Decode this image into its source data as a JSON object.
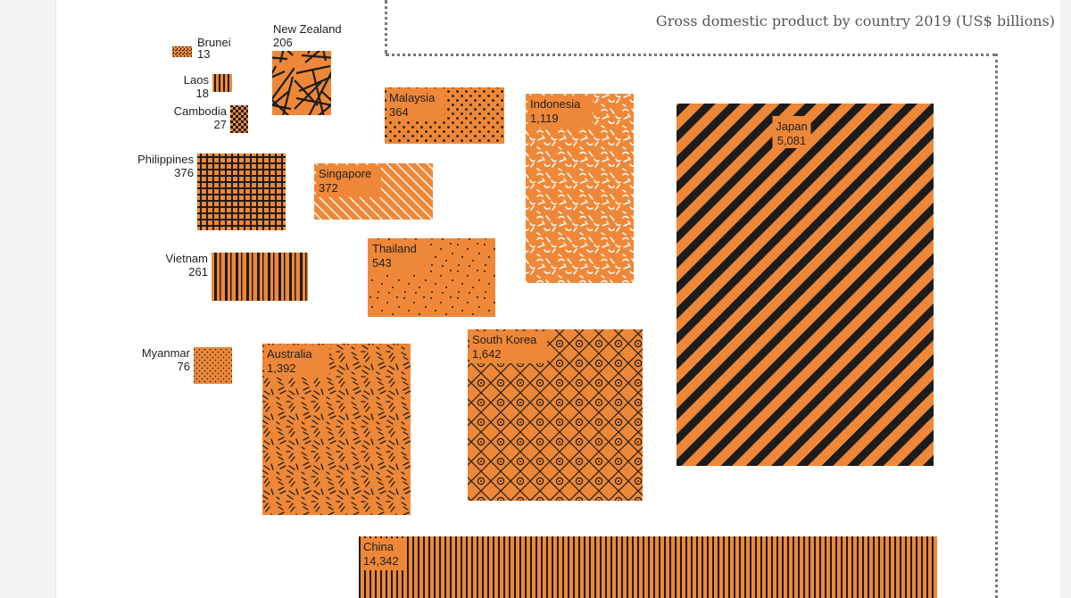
{
  "chart_data": {
    "type": "treemap",
    "title": "Gross domestic product by country 2019 (US$ billions)",
    "colors": {
      "fill": "#ee8838",
      "ink": "#1c1c1c",
      "label_bg": "#ee8838"
    },
    "countries": [
      {
        "name": "Brunei",
        "label_value": "13",
        "value": 13,
        "pattern": "dense-texture"
      },
      {
        "name": "Laos",
        "label_value": "18",
        "value": 18,
        "pattern": "vertical-thick-stripes"
      },
      {
        "name": "Cambodia",
        "label_value": "27",
        "value": 27,
        "pattern": "checkerboard"
      },
      {
        "name": "New Zealand",
        "label_value": "206",
        "value": 206,
        "pattern": "random-lines"
      },
      {
        "name": "Philippines",
        "label_value": "376",
        "value": 376,
        "pattern": "grid"
      },
      {
        "name": "Malaysia",
        "label_value": "364",
        "value": 364,
        "pattern": "dots"
      },
      {
        "name": "Singapore",
        "label_value": "372",
        "value": 372,
        "pattern": "diagonal-thin"
      },
      {
        "name": "Indonesia",
        "label_value": "1,119",
        "value": 1119,
        "pattern": "white-squiggles"
      },
      {
        "name": "Japan",
        "label_value": "5,081",
        "value": 5081,
        "pattern": "diagonal-thick"
      },
      {
        "name": "Vietnam",
        "label_value": "261",
        "value": 261,
        "pattern": "vertical-mixed"
      },
      {
        "name": "Thailand",
        "label_value": "543",
        "value": 543,
        "pattern": "scattered-dots"
      },
      {
        "name": "Myanmar",
        "label_value": "76",
        "value": 76,
        "pattern": "diagonal-dots"
      },
      {
        "name": "Australia",
        "label_value": "1,392",
        "value": 1392,
        "pattern": "dashes"
      },
      {
        "name": "South Korea",
        "label_value": "1,642",
        "value": 1642,
        "pattern": "lattice-circles"
      },
      {
        "name": "China",
        "label_value": "14,342",
        "value": 14342,
        "pattern": "vertical-fine"
      }
    ]
  }
}
